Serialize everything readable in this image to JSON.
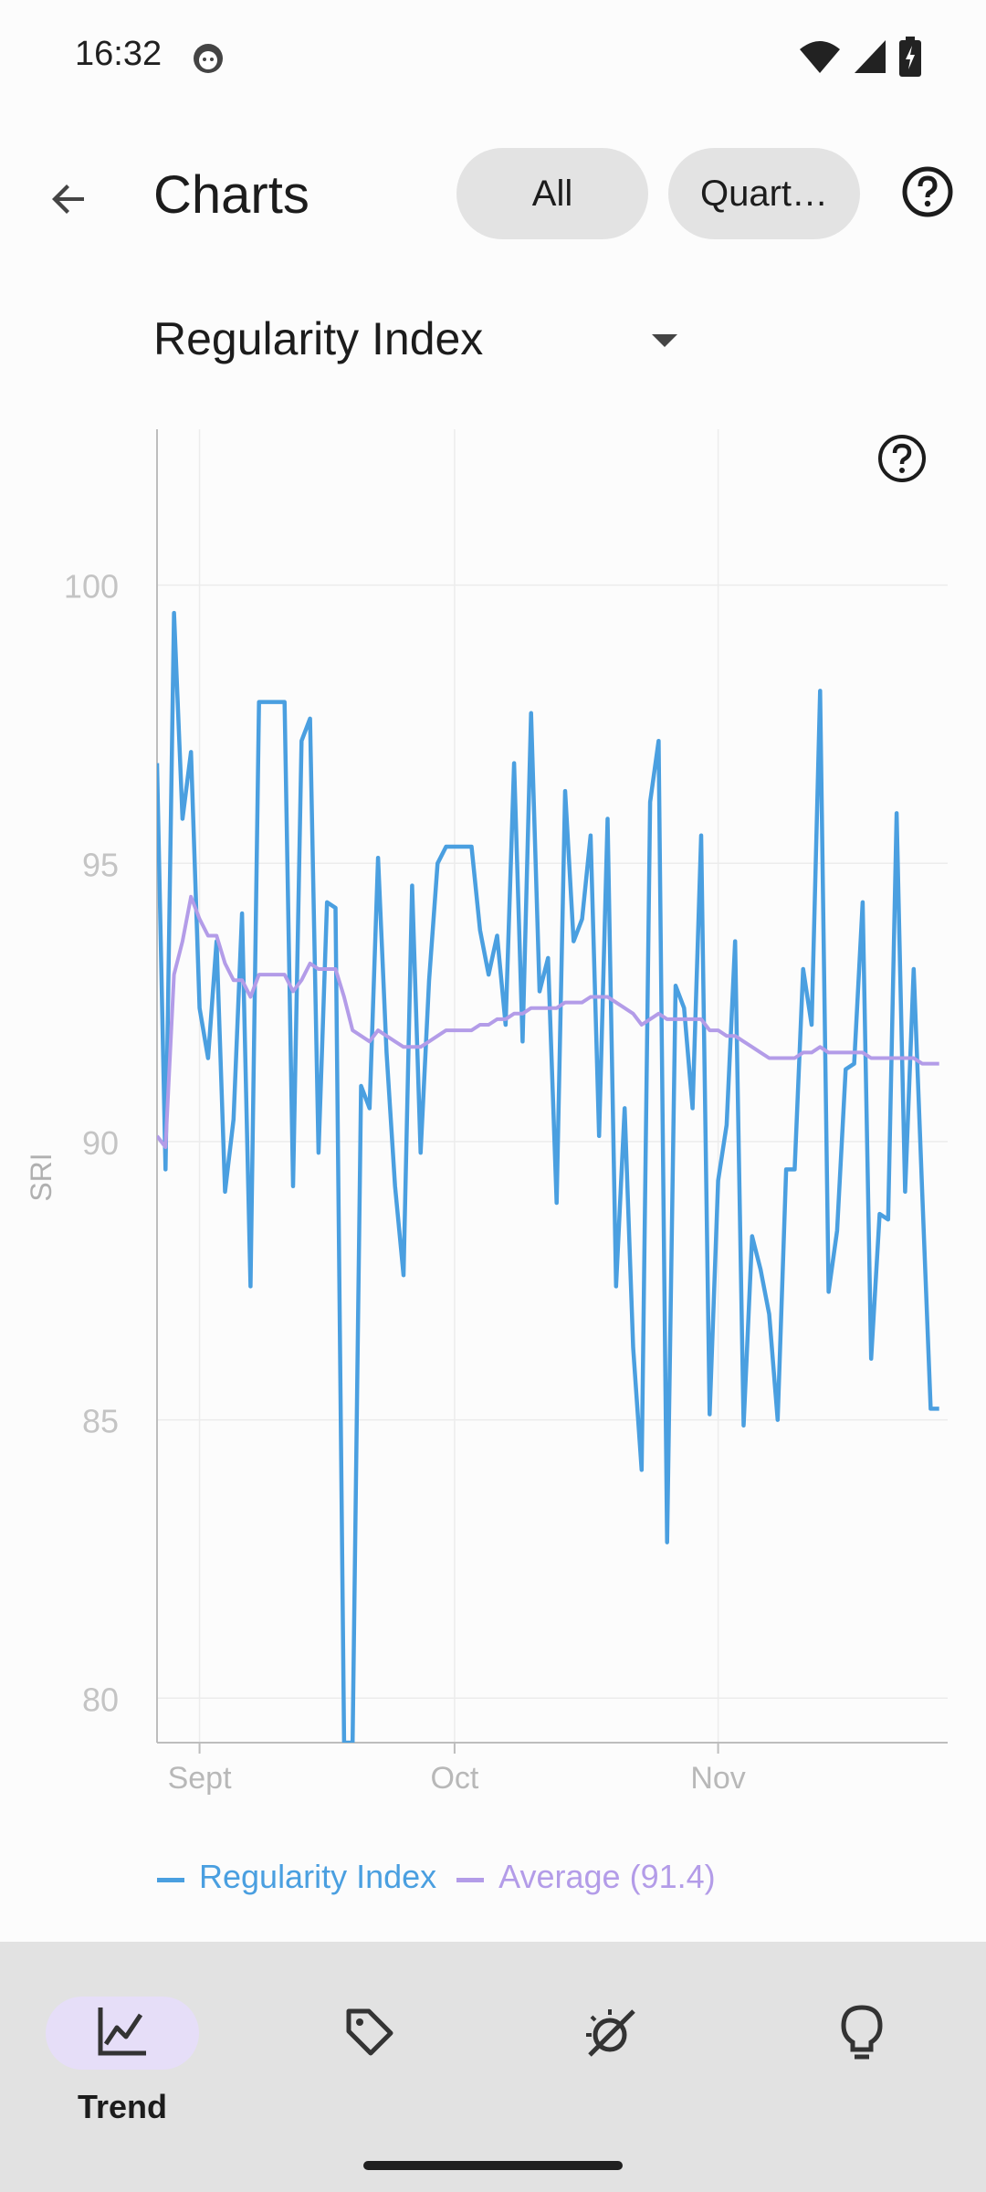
{
  "status": {
    "time": "16:32"
  },
  "header": {
    "title": "Charts",
    "chips": {
      "all": "All",
      "quarter": "Quart…"
    }
  },
  "selector": {
    "value": "Regularity Index"
  },
  "chart_data": {
    "type": "line",
    "ylabel": "SRI",
    "xlabel": "",
    "ylim": [
      79.2,
      102.8
    ],
    "yticks": [
      80,
      85,
      90,
      95,
      100
    ],
    "x_tick_labels": [
      "Sept",
      "Oct",
      "Nov"
    ],
    "x_tick_days": [
      5,
      35,
      66
    ],
    "x_range_days": [
      0,
      93
    ],
    "grid": true,
    "legend_position": "bottom",
    "colors": {
      "Regularity Index": "#4a9fe0",
      "Average (91.4)": "#b39ce8"
    },
    "series": [
      {
        "name": "Regularity Index",
        "x": [
          0,
          1,
          2,
          3,
          4,
          5,
          6,
          7,
          8,
          9,
          10,
          11,
          12,
          13,
          14,
          15,
          16,
          17,
          18,
          19,
          20,
          21,
          22,
          23,
          24,
          25,
          26,
          27,
          28,
          29,
          30,
          31,
          32,
          33,
          34,
          35,
          36,
          37,
          38,
          39,
          40,
          41,
          42,
          43,
          44,
          45,
          46,
          47,
          48,
          49,
          50,
          51,
          52,
          53,
          54,
          55,
          56,
          57,
          58,
          59,
          60,
          61,
          62,
          63,
          64,
          65,
          66,
          67,
          68,
          69,
          70,
          71,
          72,
          73,
          74,
          75,
          76,
          77,
          78,
          79,
          80,
          81,
          82,
          83,
          84,
          85,
          86,
          87,
          88,
          89,
          90,
          91,
          92
        ],
        "values": [
          96.8,
          89.5,
          99.5,
          95.8,
          97,
          92.4,
          91.5,
          93.6,
          89.1,
          90.4,
          94.1,
          87.4,
          97.9,
          97.9,
          97.9,
          97.9,
          89.2,
          97.2,
          97.6,
          89.8,
          94.3,
          94.2,
          79.2,
          79.2,
          91,
          90.6,
          95.1,
          91.6,
          89.2,
          87.6,
          94.6,
          89.8,
          92.9,
          95,
          95.3,
          95.3,
          95.3,
          95.3,
          93.8,
          93,
          93.7,
          92.1,
          96.8,
          91.8,
          97.7,
          92.7,
          93.3,
          88.9,
          96.3,
          93.6,
          94,
          95.5,
          90.1,
          95.8,
          87.4,
          90.6,
          86.3,
          84.1,
          96.1,
          97.2,
          82.8,
          92.8,
          92.4,
          90.6,
          95.5,
          85.1,
          89.3,
          90.3,
          93.6,
          84.9,
          88.3,
          87.7,
          86.9,
          85,
          89.5,
          89.5,
          93.1,
          92.1,
          98.1,
          87.3,
          88.4,
          91.3,
          91.4,
          94.3,
          86.1,
          88.7,
          88.6,
          95.9,
          89.1,
          93.1,
          89.1,
          85.2,
          85.2
        ]
      },
      {
        "name": "Average (91.4)",
        "x": [
          0,
          1,
          2,
          3,
          4,
          5,
          6,
          7,
          8,
          9,
          10,
          11,
          12,
          13,
          14,
          15,
          16,
          17,
          18,
          19,
          20,
          21,
          22,
          23,
          24,
          25,
          26,
          27,
          28,
          29,
          30,
          31,
          32,
          33,
          34,
          35,
          36,
          37,
          38,
          39,
          40,
          41,
          42,
          43,
          44,
          45,
          46,
          47,
          48,
          49,
          50,
          51,
          52,
          53,
          54,
          55,
          56,
          57,
          58,
          59,
          60,
          61,
          62,
          63,
          64,
          65,
          66,
          67,
          68,
          69,
          70,
          71,
          72,
          73,
          74,
          75,
          76,
          77,
          78,
          79,
          80,
          81,
          82,
          83,
          84,
          85,
          86,
          87,
          88,
          89,
          90,
          91,
          92
        ],
        "values": [
          90.1,
          89.9,
          93.0,
          93.6,
          94.4,
          94.0,
          93.7,
          93.7,
          93.2,
          92.9,
          92.9,
          92.6,
          93.0,
          93.0,
          93.0,
          93.0,
          92.7,
          92.9,
          93.2,
          93.1,
          93.1,
          93.1,
          92.6,
          92.0,
          91.9,
          91.8,
          92.0,
          91.9,
          91.8,
          91.7,
          91.7,
          91.7,
          91.8,
          91.9,
          92.0,
          92.0,
          92.0,
          92.0,
          92.1,
          92.1,
          92.2,
          92.2,
          92.3,
          92.3,
          92.4,
          92.4,
          92.4,
          92.4,
          92.5,
          92.5,
          92.5,
          92.6,
          92.6,
          92.6,
          92.5,
          92.4,
          92.3,
          92.1,
          92.2,
          92.3,
          92.2,
          92.2,
          92.2,
          92.2,
          92.2,
          92.0,
          92.0,
          91.9,
          91.9,
          91.8,
          91.7,
          91.6,
          91.5,
          91.5,
          91.5,
          91.5,
          91.6,
          91.6,
          91.7,
          91.6,
          91.6,
          91.6,
          91.6,
          91.6,
          91.5,
          91.5,
          91.5,
          91.5,
          91.5,
          91.5,
          91.4,
          91.4,
          91.4
        ]
      }
    ]
  },
  "legend": {
    "series1": "Regularity Index",
    "series2": "Average (91.4)"
  },
  "bottom_nav": {
    "items": [
      {
        "label": "Trend",
        "icon": "trend-chart-icon",
        "active": true
      },
      {
        "label": "",
        "icon": "tag-icon",
        "active": false
      },
      {
        "label": "",
        "icon": "sleep-cycle-icon",
        "active": false
      },
      {
        "label": "",
        "icon": "lightbulb-icon",
        "active": false
      }
    ]
  }
}
